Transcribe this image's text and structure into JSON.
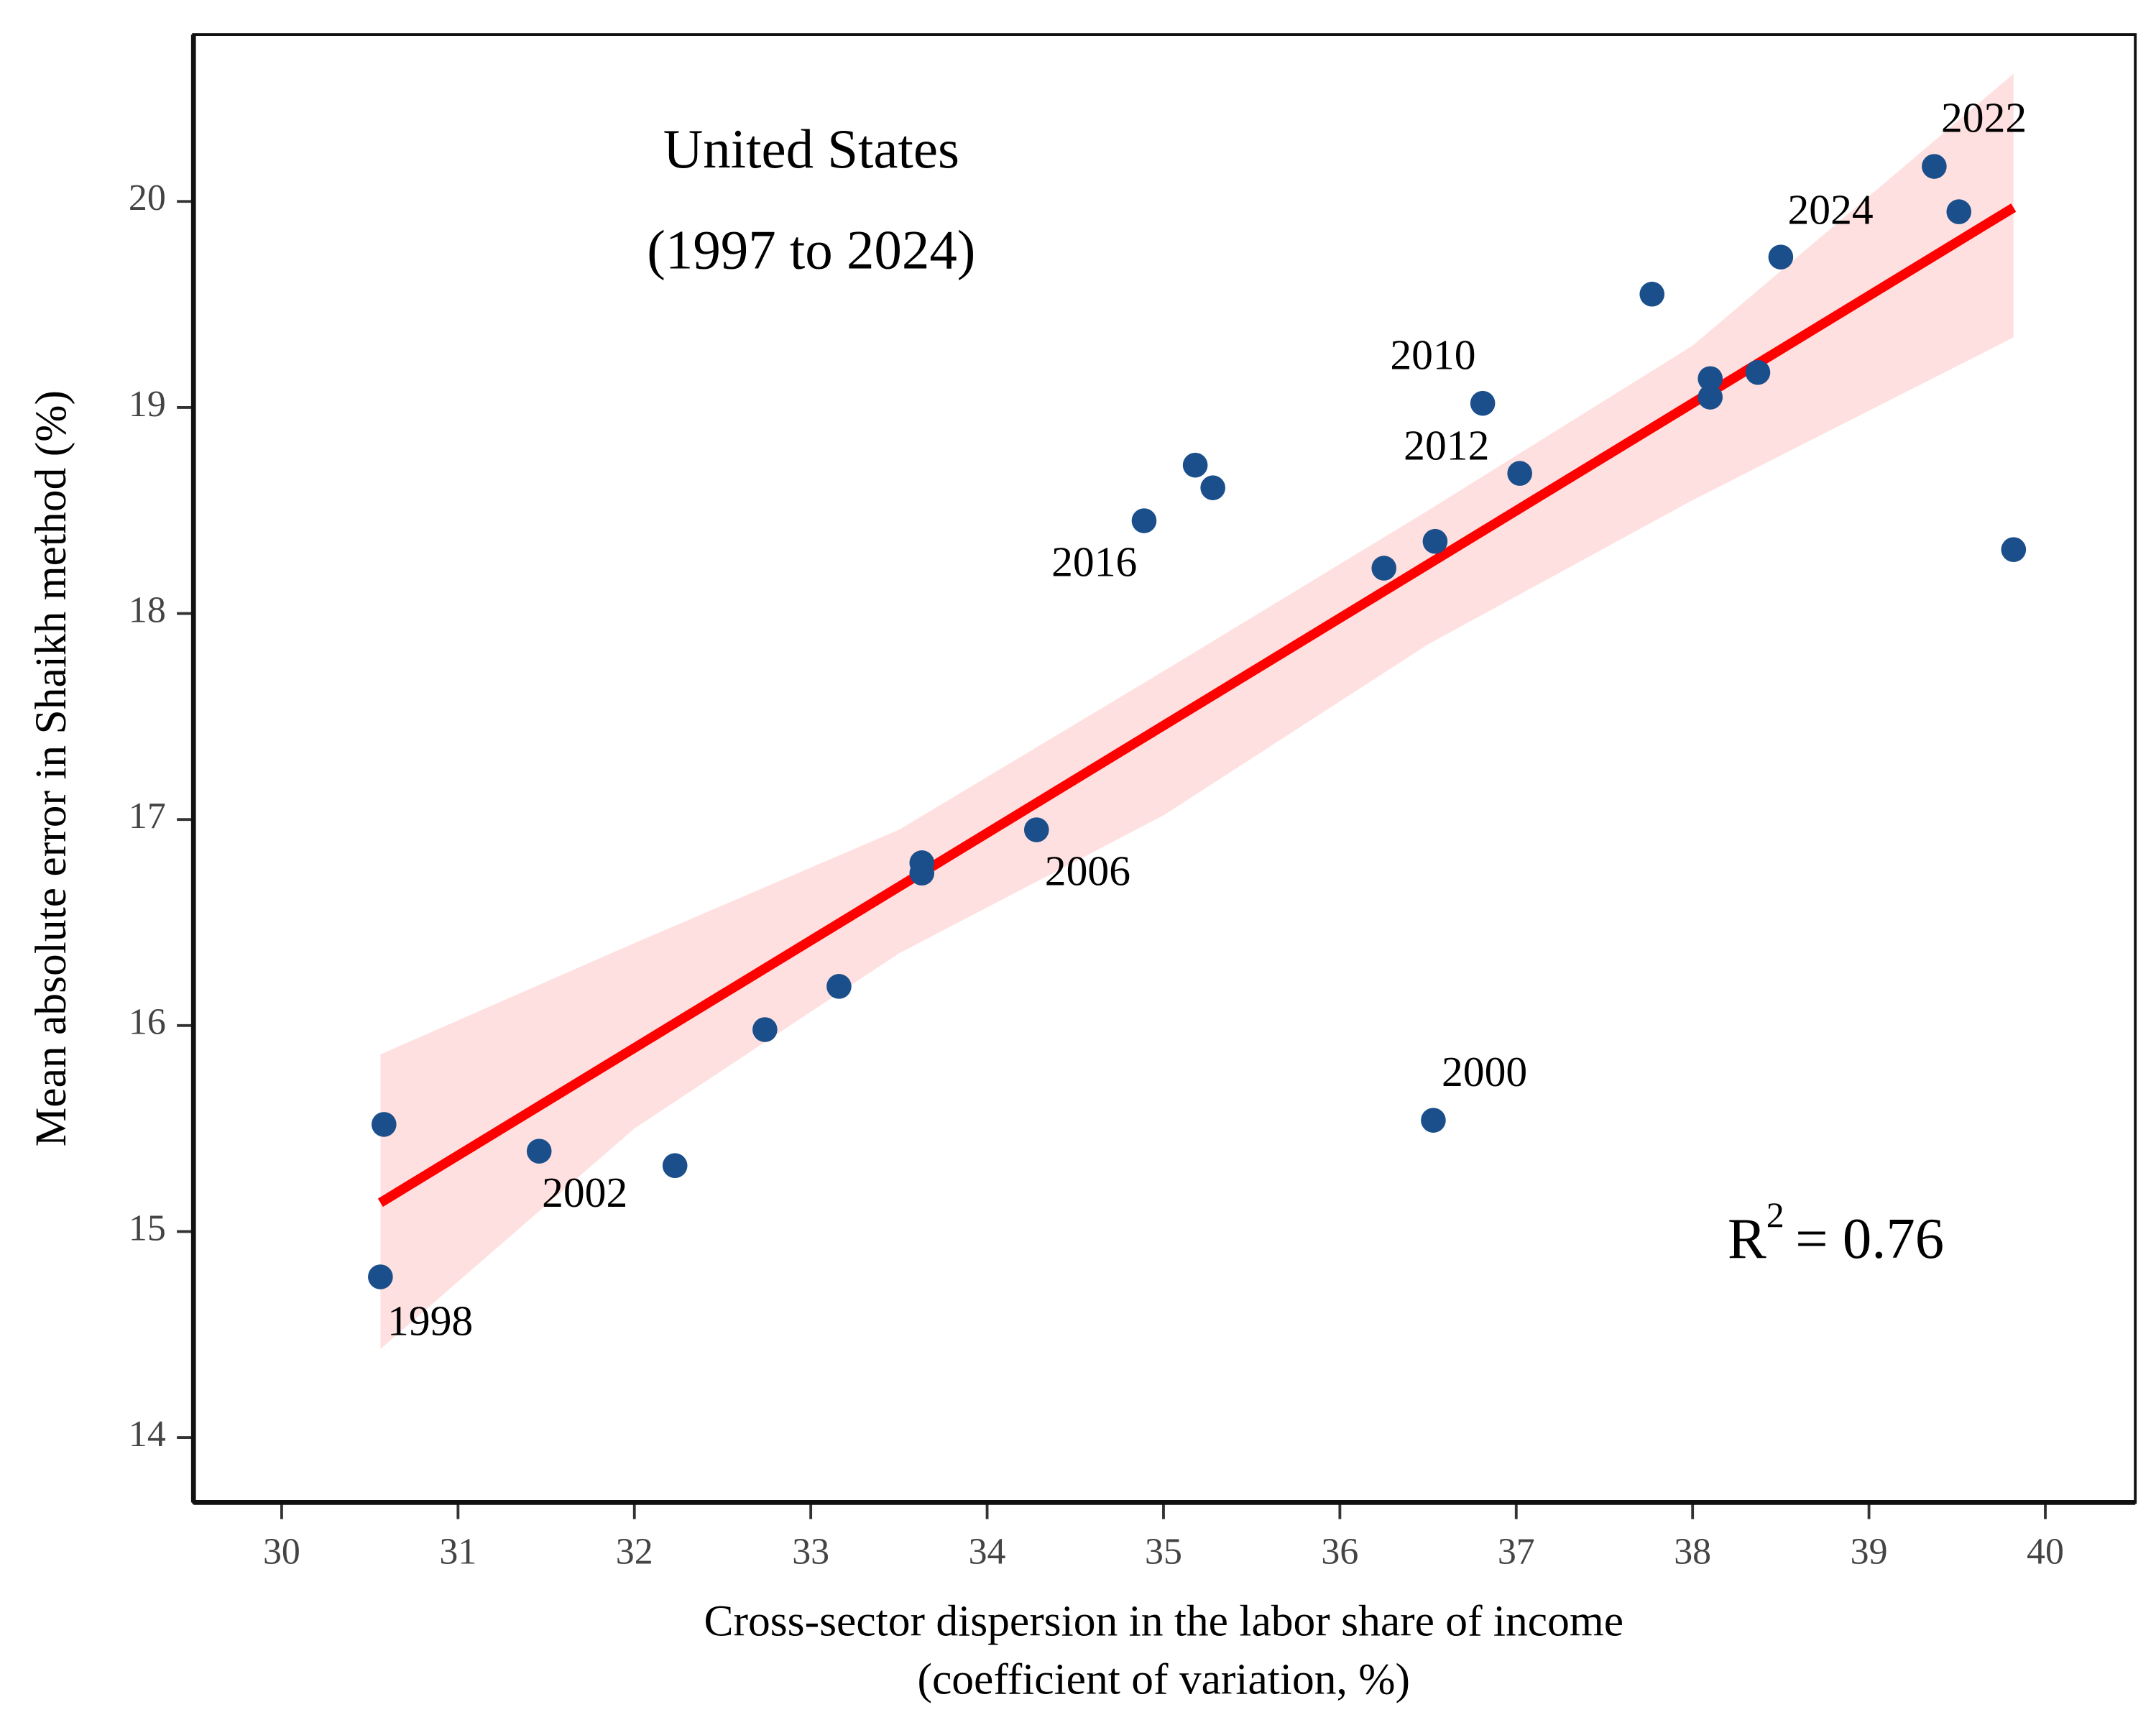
{
  "chart_data": {
    "type": "scatter",
    "title": "United States",
    "subtitle": "(1997 to 2024)",
    "x_label": "Cross-sector dispersion in the labor share of income",
    "x_label_2": "(coefficient of variation, %)",
    "y_label": "Mean absolute error in Shaikh method (%)",
    "r_squared": {
      "symbol": "R",
      "sup": "2",
      "text": "= 0.76"
    },
    "x": [
      30.56,
      30.58,
      31.46,
      32.23,
      32.74,
      33.16,
      33.63,
      33.63,
      34.28,
      34.89,
      35.18,
      35.28,
      36.25,
      36.54,
      36.53,
      36.81,
      37.02,
      37.77,
      38.1,
      38.1,
      38.37,
      38.5,
      39.37,
      39.51,
      39.82
    ],
    "values": [
      14.78,
      15.52,
      15.39,
      15.32,
      15.98,
      16.19,
      16.79,
      16.74,
      16.95,
      18.45,
      18.72,
      18.61,
      18.22,
      18.35,
      15.54,
      19.02,
      18.68,
      19.55,
      19.14,
      19.05,
      19.17,
      19.73,
      20.17,
      19.95,
      18.31
    ],
    "labels": [
      "1998",
      null,
      "2002",
      null,
      null,
      null,
      null,
      null,
      "2006",
      "2016",
      null,
      null,
      null,
      null,
      "2000",
      "2010",
      "2012",
      null,
      null,
      null,
      null,
      "2024",
      "2022",
      null,
      null
    ],
    "color": "#1a4f8b",
    "fit": {
      "color": "#ff0000",
      "x": [
        30.56,
        39.82
      ],
      "values": [
        15.14,
        19.97
      ]
    },
    "band": {
      "color": "#ffe0e0",
      "x": [
        30.56,
        32,
        33.5,
        35,
        36.5,
        38,
        39.82
      ],
      "upper": [
        15.86,
        16.4,
        16.95,
        17.72,
        18.5,
        19.3,
        20.62
      ],
      "lower": [
        14.43,
        15.5,
        16.35,
        17.02,
        17.85,
        18.55,
        19.34
      ]
    },
    "xlim": [
      29.5,
      40.51
    ],
    "ylim": [
      13.685,
      20.81
    ],
    "xticks": [
      30,
      31,
      32,
      33,
      34,
      35,
      36,
      37,
      38,
      39,
      40
    ],
    "yticks": [
      14,
      15,
      16,
      17,
      18,
      19,
      20
    ]
  }
}
